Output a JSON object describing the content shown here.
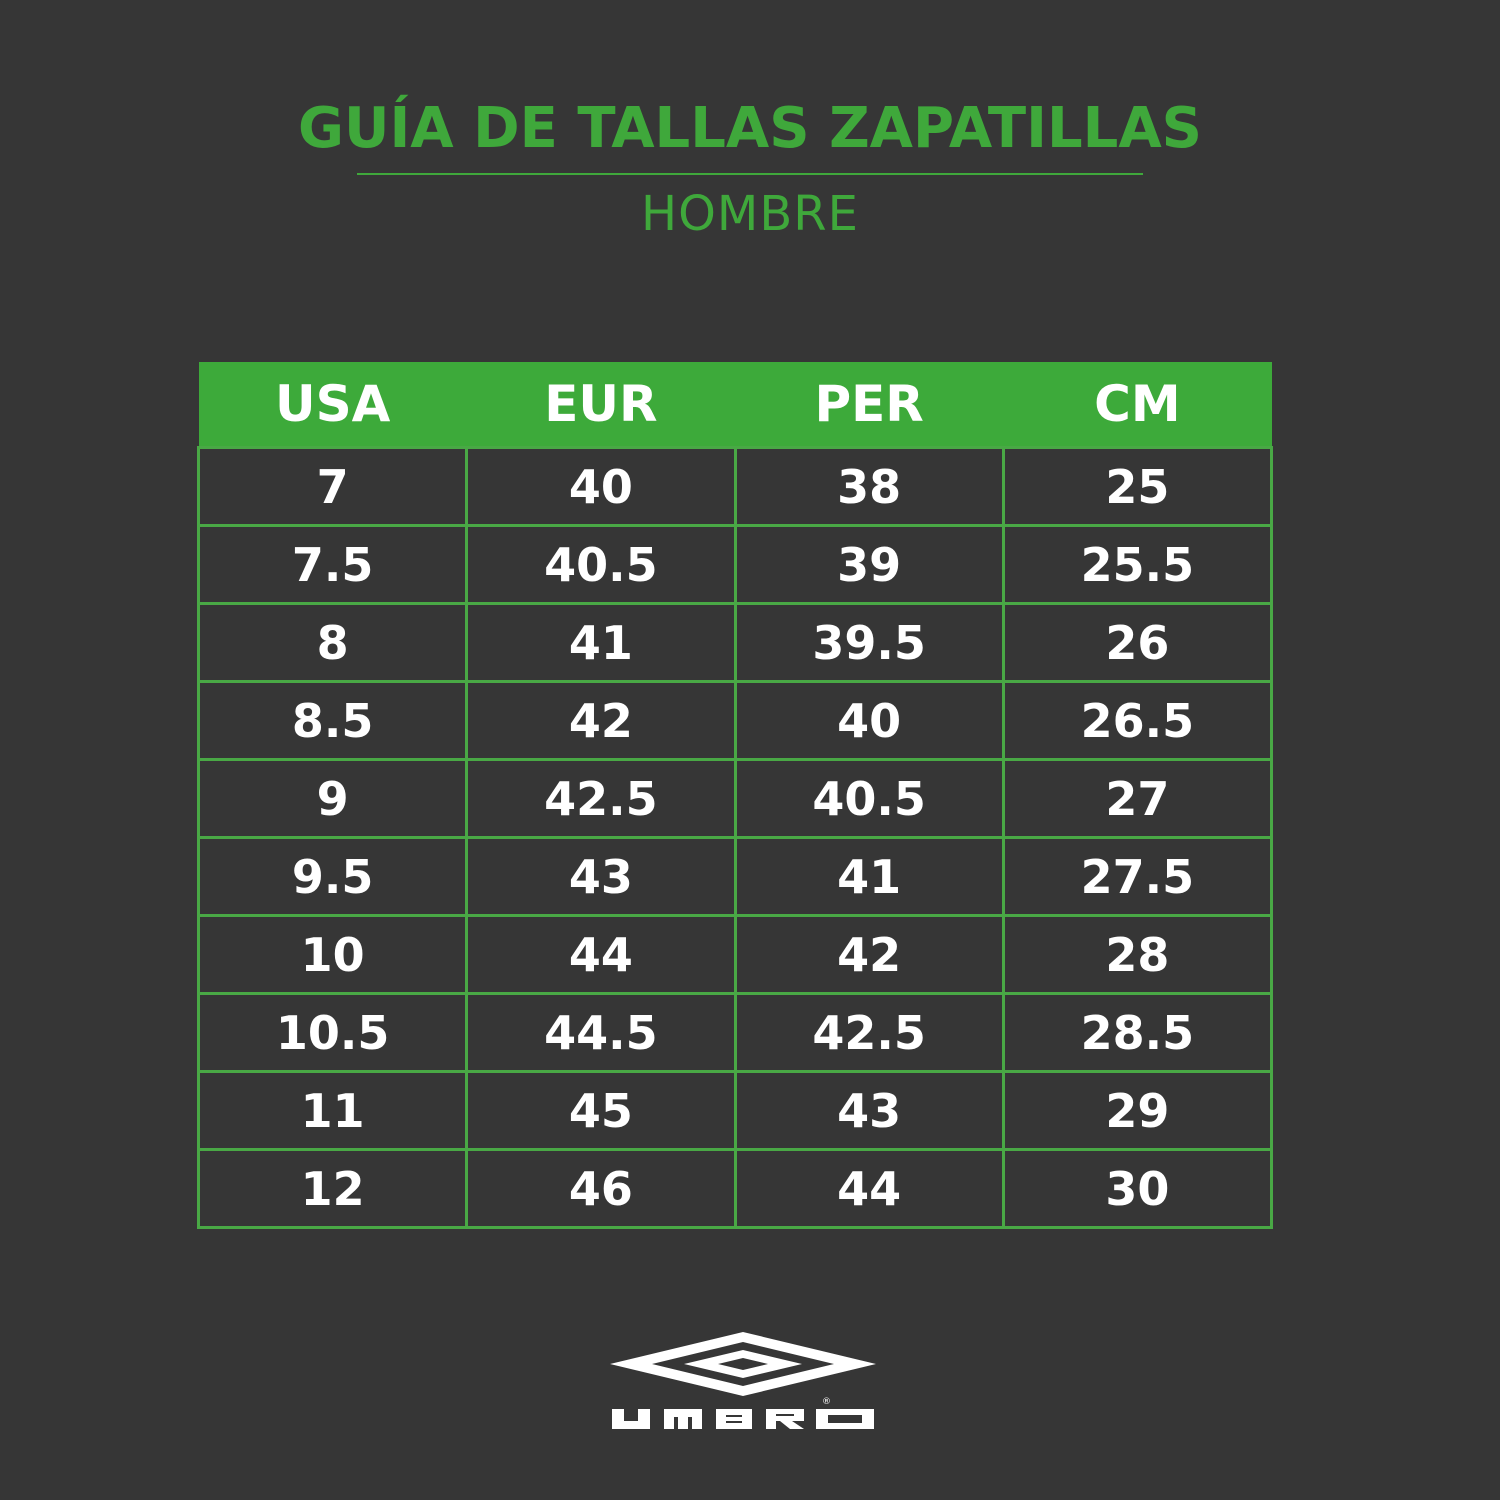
{
  "header": {
    "title": "GUÍA DE TALLAS ZAPATILLAS",
    "subtitle": "HOMBRE"
  },
  "table": {
    "columns": [
      "USA",
      "EUR",
      "PER",
      "CM"
    ],
    "rows": [
      [
        "7",
        "40",
        "38",
        "25"
      ],
      [
        "7.5",
        "40.5",
        "39",
        "25.5"
      ],
      [
        "8",
        "41",
        "39.5",
        "26"
      ],
      [
        "8.5",
        "42",
        "40",
        "26.5"
      ],
      [
        "9",
        "42.5",
        "40.5",
        "27"
      ],
      [
        "9.5",
        "43",
        "41",
        "27.5"
      ],
      [
        "10",
        "44",
        "42",
        "28"
      ],
      [
        "10.5",
        "44.5",
        "42.5",
        "28.5"
      ],
      [
        "11",
        "45",
        "43",
        "29"
      ],
      [
        "12",
        "46",
        "44",
        "30"
      ]
    ]
  },
  "logo": {
    "text": "UMBRO",
    "mark": "®"
  },
  "colors": {
    "accent": "#3daa3a",
    "background": "#363636",
    "text": "#ffffff"
  }
}
